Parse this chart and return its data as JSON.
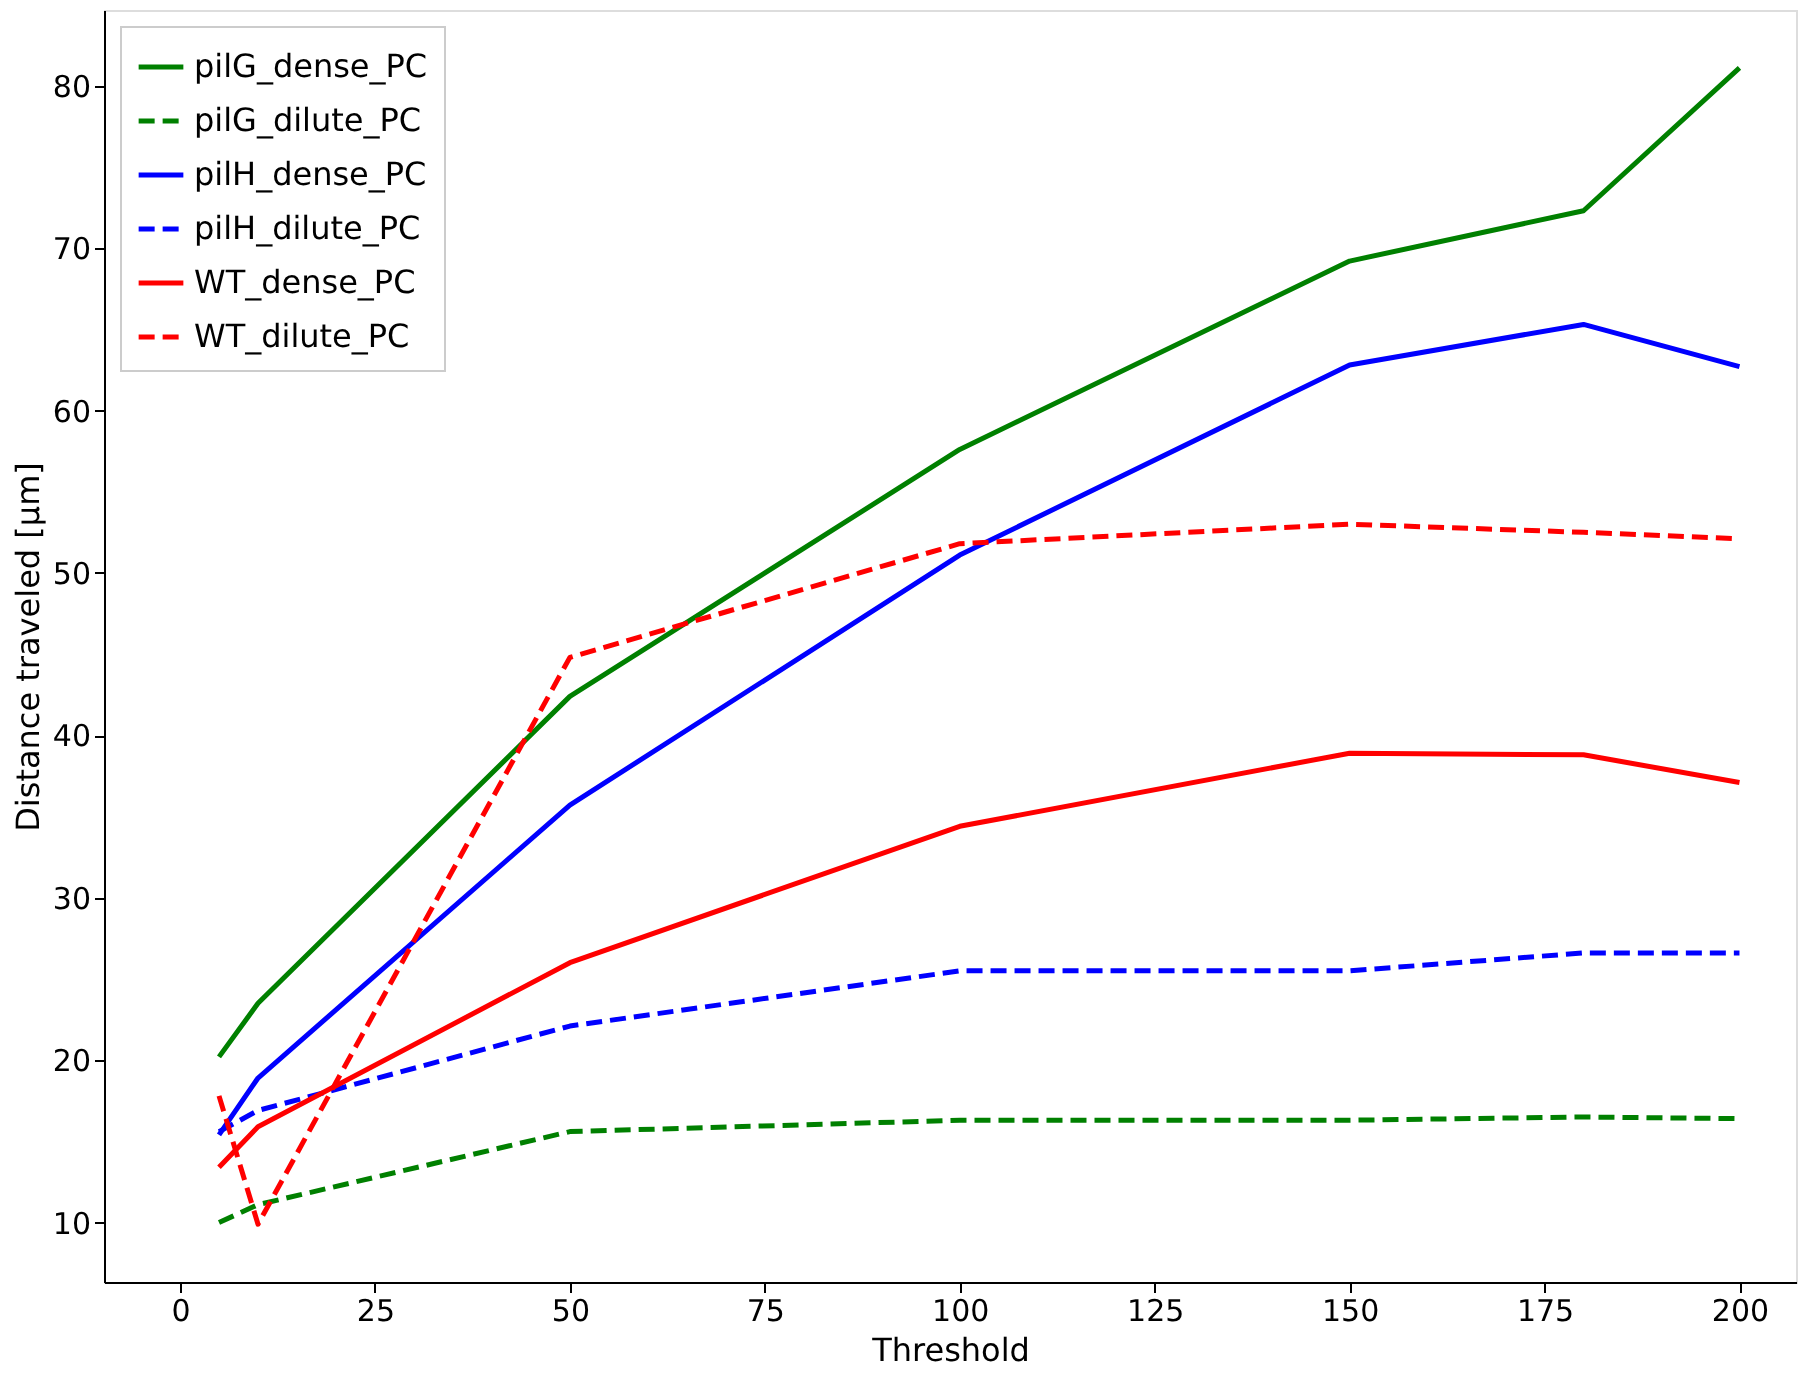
{
  "chart_data": {
    "type": "line",
    "xlabel": "Threshold",
    "ylabel": "Distance traveled [µm]",
    "x": [
      5,
      10,
      50,
      100,
      150,
      180,
      200
    ],
    "xlim": [
      -9.75,
      207.25
    ],
    "xticks": [
      0,
      25,
      50,
      75,
      100,
      125,
      150,
      175,
      200
    ],
    "ylim": [
      6.34,
      84.66
    ],
    "yticks": [
      10,
      20,
      30,
      40,
      50,
      60,
      70,
      80
    ],
    "grid": false,
    "legend": "top left",
    "series": [
      {
        "name": "pilG_dense_PC",
        "color": "#008000",
        "line_style": "solid",
        "values": [
          20.2,
          23.5,
          42.4,
          57.6,
          69.2,
          72.3,
          81.1
        ]
      },
      {
        "name": "pilG_dilute_PC",
        "color": "#008000",
        "line_style": "dashed",
        "values": [
          10.0,
          11.1,
          15.6,
          16.3,
          16.3,
          16.5,
          16.4
        ]
      },
      {
        "name": "pilH_dense_PC",
        "color": "#0000ff",
        "line_style": "solid",
        "values": [
          15.4,
          18.9,
          35.7,
          51.1,
          62.8,
          65.3,
          62.7
        ]
      },
      {
        "name": "pilH_dilute_PC",
        "color": "#0000ff",
        "line_style": "dashed",
        "values": [
          15.6,
          16.9,
          22.1,
          25.5,
          25.5,
          26.6,
          26.6
        ]
      },
      {
        "name": "WT_dense_PC",
        "color": "#ff0000",
        "line_style": "solid",
        "values": [
          13.4,
          15.9,
          26.0,
          34.4,
          38.9,
          38.8,
          37.1
        ]
      },
      {
        "name": "WT_dilute_PC",
        "color": "#ff0000",
        "line_style": "dashed",
        "values": [
          17.8,
          9.9,
          44.8,
          51.8,
          53.0,
          52.5,
          52.1
        ]
      }
    ]
  }
}
